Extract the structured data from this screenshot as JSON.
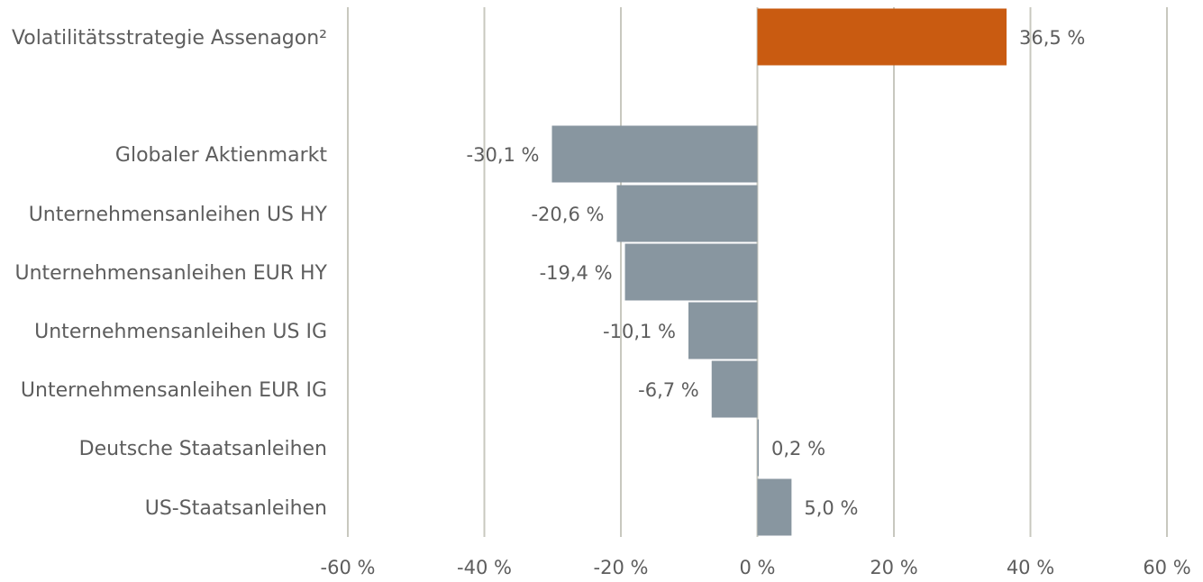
{
  "chart_data": {
    "type": "bar",
    "orientation": "horizontal",
    "categories": [
      "Volatilitätsstrategie Assenagon²",
      "Globaler Aktienmarkt",
      "Unternehmensanleihen US HY",
      "Unternehmensanleihen EUR HY",
      "Unternehmensanleihen US IG",
      "Unternehmensanleihen EUR IG",
      "Deutsche Staatsanleihen",
      "US-Staatsanleihen"
    ],
    "values": [
      36.5,
      -30.1,
      -20.6,
      -19.4,
      -10.1,
      -6.7,
      0.2,
      5.0
    ],
    "value_labels": [
      "36,5 %",
      "-30,1 %",
      "-20,6 %",
      "-19,4 %",
      "-10,1 %",
      "-6,7 %",
      "0,2 %",
      "5,0 %"
    ],
    "bar_colors": [
      "#c95b11",
      "#8896a0",
      "#8896a0",
      "#8896a0",
      "#8896a0",
      "#8896a0",
      "#8896a0",
      "#8896a0"
    ],
    "xlim": [
      -60,
      60
    ],
    "xticks": [
      -60,
      -40,
      -20,
      0,
      20,
      40,
      60
    ],
    "xtick_labels": [
      "-60 %",
      "-40 %",
      "-20 %",
      "0 %",
      "20 %",
      "40 %",
      "60 %"
    ],
    "grid": true,
    "colors": {
      "highlight": "#c95b11",
      "default": "#8896a0",
      "grid": "#c8c8bf",
      "text": "#5d5d5d"
    }
  }
}
